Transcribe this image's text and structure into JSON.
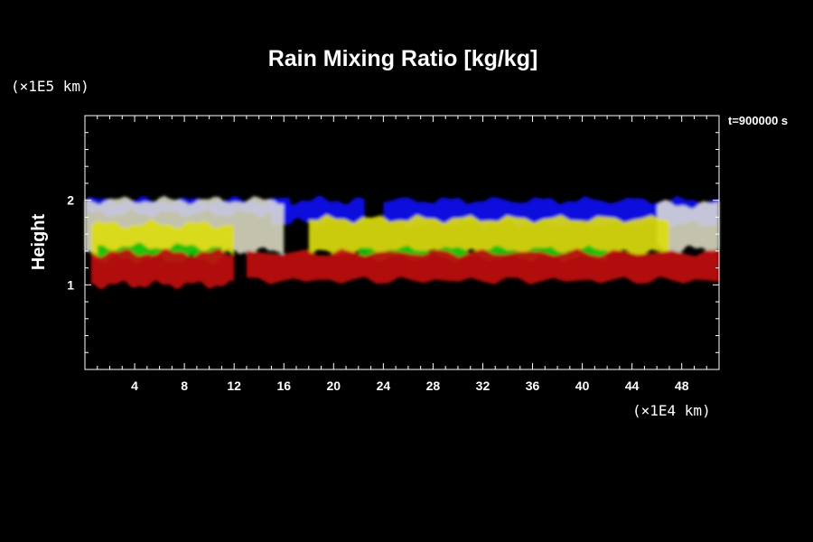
{
  "chart_data": {
    "type": "heatmap",
    "title": "Rain Mixing Ratio [kg/kg]",
    "ylabel": "Height",
    "xlabel": "",
    "x_unit": "(×1E4 km)",
    "y_unit": "(×1E5 km)",
    "time_label": "t=900000 s",
    "xlim": [
      0,
      51
    ],
    "ylim": [
      0,
      3
    ],
    "x_ticks": [
      4,
      8,
      12,
      16,
      20,
      24,
      28,
      32,
      36,
      40,
      44,
      48
    ],
    "y_ticks": [
      1,
      2
    ],
    "background": "#000000",
    "layer_colors": {
      "blue": "#1010f0",
      "white": "#f2f2d8",
      "yellow": "#dcdc10",
      "green": "#10c010",
      "red": "#c01010"
    },
    "bands": [
      {
        "color": "blue",
        "x0": 0,
        "x1": 16.5,
        "top": 2.0,
        "bottom": 1.84
      },
      {
        "color": "blue",
        "x0": 15,
        "x1": 22.5,
        "top": 2.0,
        "bottom": 1.74
      },
      {
        "color": "blue",
        "x0": 24,
        "x1": 51,
        "top": 2.0,
        "bottom": 1.72
      },
      {
        "color": "white",
        "x0": 0,
        "x1": 16,
        "top": 2.0,
        "bottom": 1.4
      },
      {
        "color": "white",
        "x0": 46,
        "x1": 51,
        "top": 1.95,
        "bottom": 1.42
      },
      {
        "color": "yellow",
        "x0": 0.5,
        "x1": 12,
        "top": 1.72,
        "bottom": 1.35
      },
      {
        "color": "yellow",
        "x0": 18,
        "x1": 47,
        "top": 1.78,
        "bottom": 1.38
      },
      {
        "color": "green",
        "x0": 1,
        "x1": 11,
        "top": 1.45,
        "bottom": 1.3
      },
      {
        "color": "green",
        "x0": 22,
        "x1": 42,
        "top": 1.42,
        "bottom": 1.32
      },
      {
        "color": "red",
        "x0": 0.5,
        "x1": 12,
        "top": 1.38,
        "bottom": 1.0
      },
      {
        "color": "red",
        "x0": 13,
        "x1": 51,
        "top": 1.38,
        "bottom": 1.05
      }
    ]
  }
}
